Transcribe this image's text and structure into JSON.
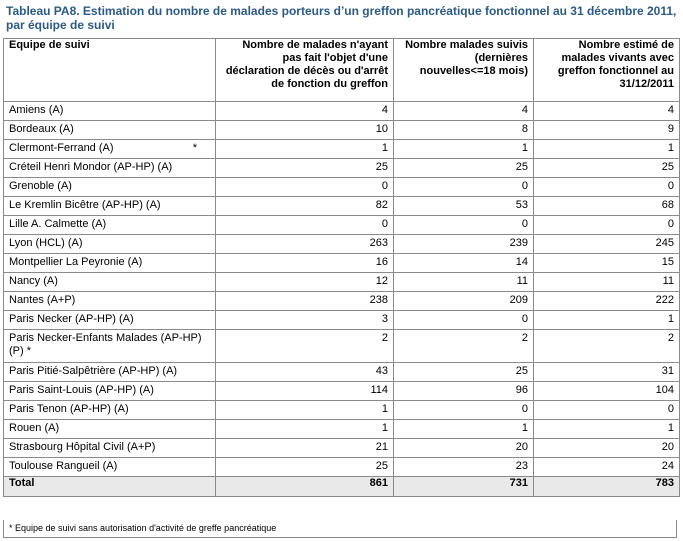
{
  "caption": "Tableau PA8. Estimation du nombre de malades porteurs d’un greffon pancréatique fonctionnel au 31 décembre 2011, par équipe de suivi",
  "headers": {
    "team": "Equipe de suivi",
    "col1": "Nombre de malades n'ayant pas fait l'objet d'une déclaration de décès ou d'arrêt de fonction du greffon",
    "col2": "Nombre malades suivis (dernières nouvelles<=18 mois)",
    "col3": "Nombre estimé de malades vivants avec greffon fonctionnel au 31/12/2011"
  },
  "rows": [
    {
      "team": "Amiens (A)",
      "c1": "4",
      "c2": "4",
      "c3": "4"
    },
    {
      "team": "Bordeaux (A)",
      "c1": "10",
      "c2": "8",
      "c3": "9"
    },
    {
      "team": "Clermont-Ferrand (A)",
      "star": "*",
      "c1": "1",
      "c2": "1",
      "c3": "1"
    },
    {
      "team": "Créteil Henri Mondor (AP-HP) (A)",
      "c1": "25",
      "c2": "25",
      "c3": "25"
    },
    {
      "team": "Grenoble (A)",
      "c1": "0",
      "c2": "0",
      "c3": "0"
    },
    {
      "team": "Le Kremlin Bicêtre (AP-HP) (A)",
      "c1": "82",
      "c2": "53",
      "c3": "68"
    },
    {
      "team": "Lille A. Calmette (A)",
      "c1": "0",
      "c2": "0",
      "c3": "0"
    },
    {
      "team": "Lyon (HCL) (A)",
      "c1": "263",
      "c2": "239",
      "c3": "245"
    },
    {
      "team": "Montpellier La Peyronie (A)",
      "c1": "16",
      "c2": "14",
      "c3": "15"
    },
    {
      "team": "Nancy (A)",
      "c1": "12",
      "c2": "11",
      "c3": "11"
    },
    {
      "team": "Nantes (A+P)",
      "c1": "238",
      "c2": "209",
      "c3": "222"
    },
    {
      "team": "Paris Necker (AP-HP) (A)",
      "c1": "3",
      "c2": "0",
      "c3": "1"
    },
    {
      "team": "Paris Necker-Enfants Malades (AP-HP) (P)  *",
      "c1": "2",
      "c2": "2",
      "c3": "2",
      "tall": true
    },
    {
      "team": "Paris Pitié-Salpêtrière  (AP-HP) (A)",
      "c1": "43",
      "c2": "25",
      "c3": "31"
    },
    {
      "team": "Paris Saint-Louis (AP-HP) (A)",
      "c1": "114",
      "c2": "96",
      "c3": "104"
    },
    {
      "team": "Paris Tenon (AP-HP) (A)",
      "c1": "1",
      "c2": "0",
      "c3": "0"
    },
    {
      "team": "Rouen (A)",
      "c1": "1",
      "c2": "1",
      "c3": "1"
    },
    {
      "team": "Strasbourg Hôpital Civil (A+P)",
      "c1": "21",
      "c2": "20",
      "c3": "20"
    },
    {
      "team": "Toulouse Rangueil (A)",
      "c1": "25",
      "c2": "23",
      "c3": "24"
    }
  ],
  "total": {
    "label": "Total",
    "c1": "861",
    "c2": "731",
    "c3": "783"
  },
  "footnote": "* Equipe de suivi sans autorisation d'activité de greffe pancréatique"
}
